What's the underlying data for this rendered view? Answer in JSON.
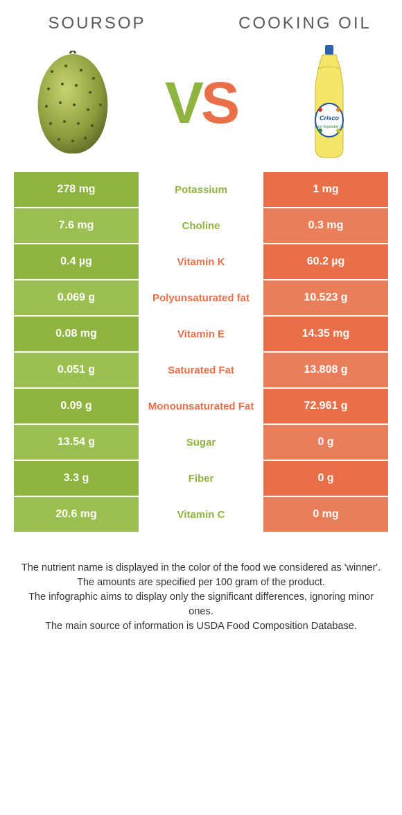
{
  "left": {
    "title": "SOURSOP"
  },
  "right": {
    "title": "COOKING OIL"
  },
  "vs": {
    "v": "V",
    "s": "S"
  },
  "colors": {
    "green": "#8fb33f",
    "green_alt": "#9cbf52",
    "orange": "#e96f48",
    "orange_alt": "#eb7e5a"
  },
  "rows": [
    {
      "nutrient": "Potassium",
      "winner": "left",
      "left": "278 mg",
      "right": "1 mg"
    },
    {
      "nutrient": "Choline",
      "winner": "left",
      "left": "7.6 mg",
      "right": "0.3 mg"
    },
    {
      "nutrient": "Vitamin K",
      "winner": "right",
      "left": "0.4 µg",
      "right": "60.2 µg"
    },
    {
      "nutrient": "Polyunsaturated fat",
      "winner": "right",
      "left": "0.069 g",
      "right": "10.523 g"
    },
    {
      "nutrient": "Vitamin E",
      "winner": "right",
      "left": "0.08 mg",
      "right": "14.35 mg"
    },
    {
      "nutrient": "Saturated Fat",
      "winner": "right",
      "left": "0.051 g",
      "right": "13.808 g"
    },
    {
      "nutrient": "Monounsaturated Fat",
      "winner": "right",
      "left": "0.09 g",
      "right": "72.961 g"
    },
    {
      "nutrient": "Sugar",
      "winner": "left",
      "left": "13.54 g",
      "right": "0 g"
    },
    {
      "nutrient": "Fiber",
      "winner": "left",
      "left": "3.3 g",
      "right": "0 g"
    },
    {
      "nutrient": "Vitamin C",
      "winner": "left",
      "left": "20.6 mg",
      "right": "0 mg"
    }
  ],
  "footnotes": [
    "The nutrient name is displayed in the color of the food we considered as 'winner'.",
    "The amounts are specified per 100 gram of the product.",
    "The infographic aims to display only the significant differences, ignoring minor ones.",
    "The main source of information is USDA Food Composition Database."
  ]
}
